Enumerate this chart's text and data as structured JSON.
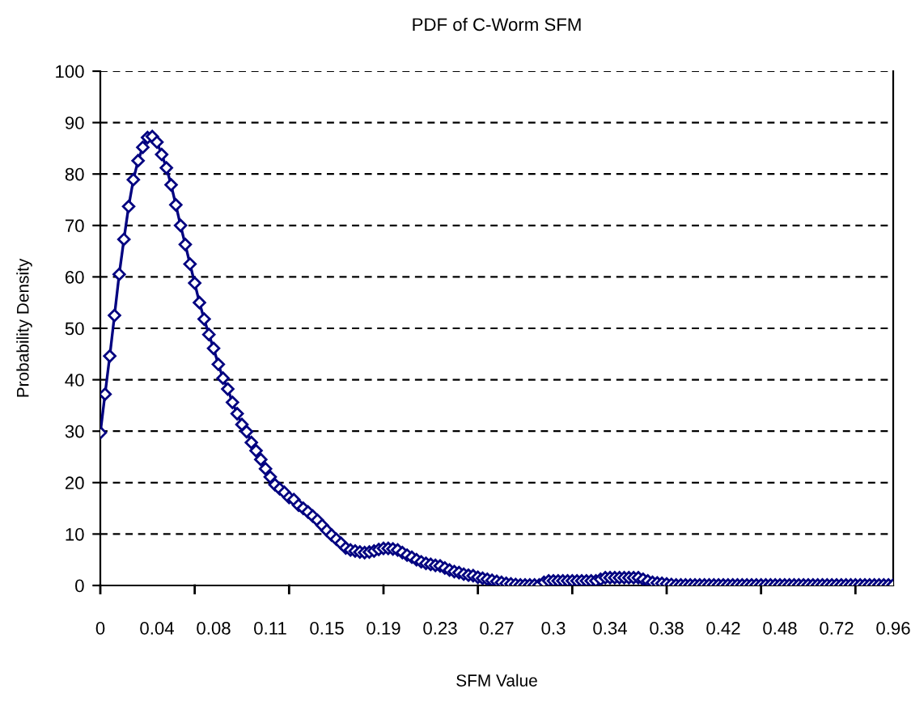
{
  "chart_data": {
    "type": "line",
    "title": "PDF of C-Worm SFM",
    "xlabel": "SFM Value",
    "ylabel": "Probability Density",
    "categories": [
      "0",
      null,
      null,
      null,
      null,
      null,
      null,
      null,
      null,
      null,
      null,
      null,
      "0.04",
      null,
      null,
      null,
      null,
      null,
      null,
      null,
      null,
      null,
      null,
      null,
      "0.08",
      null,
      null,
      null,
      null,
      null,
      null,
      null,
      null,
      null,
      null,
      null,
      "0.11",
      null,
      null,
      null,
      null,
      null,
      null,
      null,
      null,
      null,
      null,
      null,
      "0.15",
      null,
      null,
      null,
      null,
      null,
      null,
      null,
      null,
      null,
      null,
      null,
      "0.19",
      null,
      null,
      null,
      null,
      null,
      null,
      null,
      null,
      null,
      null,
      null,
      "0.23",
      null,
      null,
      null,
      null,
      null,
      null,
      null,
      null,
      null,
      null,
      null,
      "0.27",
      null,
      null,
      null,
      null,
      null,
      null,
      null,
      null,
      null,
      null,
      null,
      "0.3",
      null,
      null,
      null,
      null,
      null,
      null,
      null,
      null,
      null,
      null,
      null,
      "0.34",
      null,
      null,
      null,
      null,
      null,
      null,
      null,
      null,
      null,
      null,
      null,
      "0.38",
      null,
      null,
      null,
      null,
      null,
      null,
      null,
      null,
      null,
      null,
      null,
      "0.42",
      null,
      null,
      null,
      null,
      null,
      null,
      null,
      null,
      null,
      null,
      null,
      "0.48",
      null,
      null,
      null,
      null,
      null,
      null,
      null,
      null,
      null,
      null,
      null,
      "0.72",
      null,
      null,
      null,
      null,
      null,
      null,
      null,
      null,
      null,
      null,
      null,
      "0.96"
    ],
    "series": [
      {
        "color": "#000080",
        "values": [
          29.7,
          37.2,
          44.6,
          52.5,
          60.5,
          67.3,
          73.7,
          78.9,
          82.6,
          85.2,
          87.1,
          87.3,
          86.2,
          83.8,
          81.2,
          77.9,
          74,
          70,
          66.3,
          62.5,
          58.8,
          55,
          51.8,
          48.8,
          46.1,
          43,
          40.3,
          38.2,
          35.6,
          33.4,
          31.3,
          29.9,
          27.8,
          26.2,
          24.5,
          22.7,
          21.1,
          19.6,
          18.8,
          18.1,
          17.1,
          16.7,
          15.6,
          15,
          14.3,
          13.5,
          12.7,
          11.7,
          10.7,
          9.8,
          9,
          8.2,
          7.3,
          6.9,
          6.7,
          6.5,
          6.4,
          6.5,
          6.7,
          7,
          7.2,
          7.2,
          7.1,
          6.9,
          6.4,
          5.9,
          5.5,
          5,
          4.6,
          4.3,
          4.1,
          3.9,
          3.8,
          3.4,
          3,
          2.7,
          2.5,
          2.2,
          2,
          1.9,
          1.6,
          1.4,
          1.2,
          1,
          0.8,
          0.6,
          0.4,
          0.3,
          0.2,
          0.1,
          0.1,
          0.1,
          0.1,
          0.1,
          0.6,
          0.9,
          0.9,
          0.9,
          0.9,
          0.9,
          0.9,
          0.9,
          0.9,
          0.9,
          0.9,
          0.9,
          1.2,
          1.5,
          1.5,
          1.5,
          1.5,
          1.5,
          1.5,
          1.5,
          1.5,
          1.2,
          0.9,
          0.6,
          0.5,
          0.4,
          0.3,
          0.2,
          0.1,
          0.1,
          0.1,
          0.1,
          0.1,
          0.1,
          0.1,
          0.1,
          0.1,
          0.1,
          0.1,
          0.1,
          0.1,
          0.1,
          0.1,
          0.1,
          0.1,
          0.1,
          0.1,
          0.1,
          0.1,
          0.1,
          0.1,
          0.1,
          0.1,
          0.1,
          0.1,
          0.1,
          0.1,
          0.1,
          0.1,
          0.1,
          0.1,
          0.1,
          0.1,
          0.1,
          0.1,
          0.1,
          0.1,
          0.1,
          0.1,
          0.1,
          0.1,
          0.1,
          0.1,
          0.1,
          0.1
        ]
      }
    ],
    "ylim": [
      0,
      100
    ],
    "yticks": [
      0,
      10,
      20,
      30,
      40,
      50,
      60,
      70,
      80,
      90,
      100
    ],
    "grid": "y",
    "marker": "diamond",
    "line_style": "solid"
  }
}
